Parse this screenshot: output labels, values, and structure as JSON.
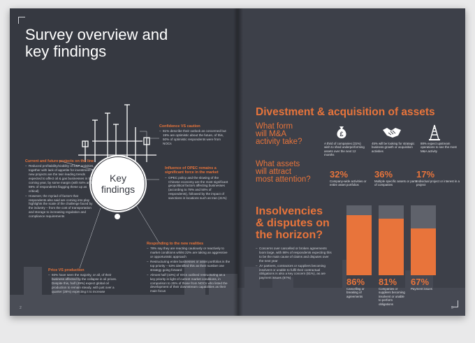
{
  "left_page": {
    "title_line1": "Survey overview and",
    "title_line2": "key findings",
    "key_findings_line1": "Key",
    "key_findings_line2": "findings",
    "page_number": "2",
    "sections": {
      "current_future": {
        "heading": "Current and future projects on the line",
        "bullets": [
          "Reduced profitability/viability of E&P activities, together with lack of appetite for investment in new projects are the twin leading trends expected to affect oil & gas businesses in the coming year, by some margin (with 64% and 59% of respondents flagging these up as critical)",
          "However, the myriad of factors that respondents also said are coming into play highlights the scale of the challenge faced by the industry – from the cost of transportation and storage to increasing regulation and compliance requirements"
        ]
      },
      "price_vs_production": {
        "heading": "Price VS production",
        "bullets": [
          "93% have seen the majority, or all, of their business affected by the collapse in oil prices. Despite this, half (49%) expect global oil production to remain steady, with just over a quarter (28%) expecting it to increase"
        ]
      },
      "confidence": {
        "heading": "Confidence VS caution",
        "bullets": [
          "81% describe their outlook as concerned but 19% are optimistic about the future, of this, 50% of optimistic respondents were from NOCs"
        ]
      },
      "opec": {
        "heading": "Influence of OPEC remains a significant force in the market",
        "bullets": [
          "OPEC policy and the slowing of the Chinese economy are the most significant geopolitical factors affecting businesses (according to 78% and 50% of respondents), followed by the impact of sanctions in locations such as Iran (41%)"
        ]
      },
      "new_realities": {
        "heading": "Responding to the new realities",
        "bullets": [
          "78% say they are reacting cautiously or reactively to market conditions whilst 22% are taking an aggressive or opportunistic approach",
          "Restructuring entire businesses or asset portfolios is the top priority – 53% identified this as their number one strategy going forward",
          "Almost half (43%) of IOCs outlined restructuring as a key priority in light of current market conditions, in comparison to 25% of those from NOCs who listed the development of their downstream capabilities as their main focus"
        ]
      }
    }
  },
  "right_page": {
    "page_number": "3",
    "divestment_title": "Divestment & acquisition of assets",
    "q1_line1": "What form",
    "q1_line2": "will M&A",
    "q1_line3": "activity take?",
    "q2_line1": "What assets",
    "q2_line2": "will attract",
    "q2_line3": "most attention?",
    "icons": [
      {
        "icon": "money-bag-icon",
        "text": "A third of companies (31%) wish to shed underperforming assets over the next 12 months"
      },
      {
        "icon": "handshake-icon",
        "text": "45% will be looking for strategic business growth or acquisition activities"
      },
      {
        "icon": "oil-rig-icon",
        "text": "88% expect upstream operations to see the most M&A activity"
      }
    ],
    "assets": [
      {
        "pct": "32%",
        "text": "Company-wide activities or entire asset portfolios"
      },
      {
        "pct": "36%",
        "text": "Multiple specific assets or parts of companies"
      },
      {
        "pct": "17%",
        "text": "Individual project or interest in a project"
      }
    ],
    "insolvency_line1": "Insolvencies",
    "insolvency_line2": "& disputes on",
    "insolvency_line3": "the horizon?",
    "insolvency_bullets": [
      "Concerns over cancelled or broken agreements loom large, with 86% of respondents expecting this to be the main cause of claims and disputes over the next year",
      "JV partners, contractors or suppliers becoming insolvent or unable to fulfil their contractual obligations is also a key concern (81%), as are payment issues (67%)"
    ],
    "bars": [
      {
        "pct": "86%",
        "value": 86,
        "label": "Cancelling or breaking of agreements"
      },
      {
        "pct": "81%",
        "value": 81,
        "label": "Companies or suppliers becoming insolvent or unable to perform obligations"
      },
      {
        "pct": "67%",
        "value": 67,
        "label": "Payment issues"
      }
    ],
    "colors": {
      "accent": "#e8743b",
      "background": "#3d4049",
      "bar_track": "#5f626b"
    }
  }
}
